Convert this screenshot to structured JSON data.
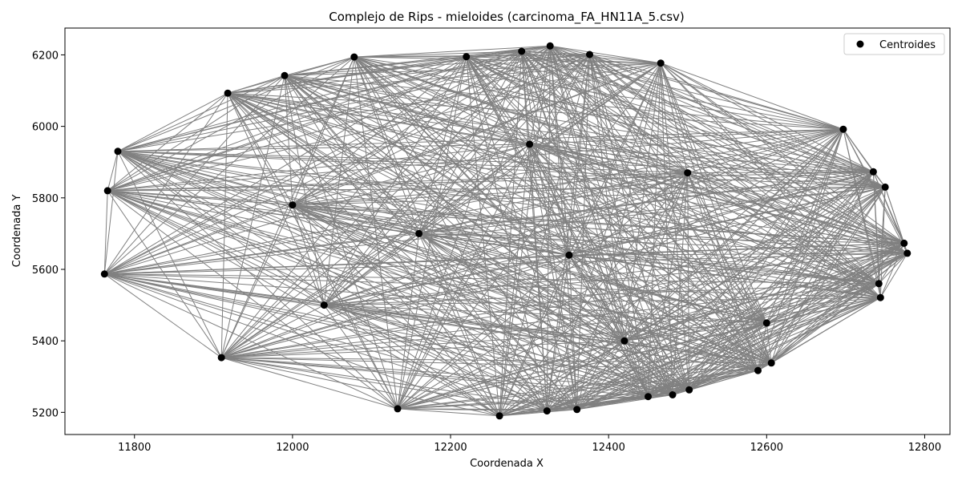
{
  "chart_data": {
    "type": "scatter",
    "title": "Complejo de Rips - mieloides (carcinoma_FA_HN11A_5.csv)",
    "xlabel": "Coordenada X",
    "ylabel": "Coordenada Y",
    "xlim": [
      11712,
      12832
    ],
    "ylim": [
      5138,
      6275
    ],
    "xticks": [
      11800,
      12000,
      12200,
      12400,
      12600,
      12800
    ],
    "yticks": [
      5200,
      5400,
      5600,
      5800,
      6000,
      6200
    ],
    "grid": false,
    "legend": {
      "placement": "top-right",
      "entries": [
        "Centroides"
      ]
    },
    "colors": {
      "points": "#000000",
      "edges": "#808080"
    },
    "series": [
      {
        "name": "Centroides",
        "points": [
          [
            11762,
            5587
          ],
          [
            11766,
            5820
          ],
          [
            11779,
            5930
          ],
          [
            11910,
            5353
          ],
          [
            11918,
            6093
          ],
          [
            11990,
            6142
          ],
          [
            12078,
            6194
          ],
          [
            12133,
            5210
          ],
          [
            12220,
            6195
          ],
          [
            12262,
            5190
          ],
          [
            12290,
            6210
          ],
          [
            12322,
            5204
          ],
          [
            12326,
            6225
          ],
          [
            12360,
            5208
          ],
          [
            12376,
            6201
          ],
          [
            12450,
            5244
          ],
          [
            12466,
            6177
          ],
          [
            12481,
            5249
          ],
          [
            12502,
            5263
          ],
          [
            12589,
            5317
          ],
          [
            12606,
            5338
          ],
          [
            12697,
            5992
          ],
          [
            12735,
            5873
          ],
          [
            12742,
            5560
          ],
          [
            12744,
            5521
          ],
          [
            12750,
            5830
          ],
          [
            12774,
            5673
          ],
          [
            12778,
            5645
          ],
          [
            12160,
            5700
          ],
          [
            12350,
            5640
          ],
          [
            12500,
            5870
          ],
          [
            12040,
            5500
          ],
          [
            12600,
            5450
          ],
          [
            12300,
            5950
          ],
          [
            12000,
            5780
          ],
          [
            12420,
            5400
          ]
        ]
      }
    ]
  }
}
